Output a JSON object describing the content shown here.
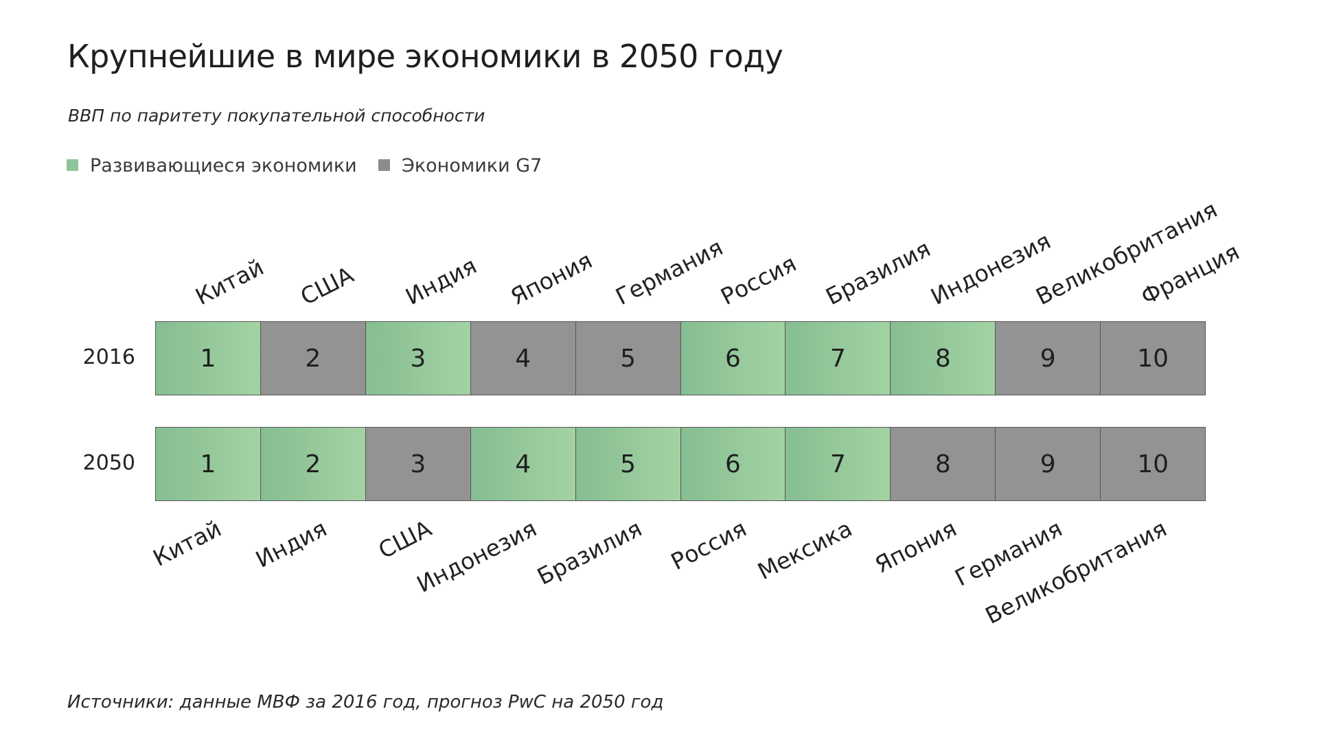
{
  "title": "Крупнейшие в мире экономики в 2050 году",
  "subtitle": "ВВП по паритету покупательной способности",
  "legend": [
    {
      "label": "Развивающиеся экономики",
      "color": "#8fc59a",
      "group": "developing"
    },
    {
      "label": "Экономики G7",
      "color": "#8c8c8c",
      "group": "g7"
    }
  ],
  "colors": {
    "developing_left": "#86bd92",
    "developing_right": "#a3d3a3",
    "g7": "#939393"
  },
  "source": "Источники: данные МВФ за 2016 год, прогноз PwC на 2050 год",
  "chart_data": {
    "type": "table",
    "ranks": [
      "1",
      "2",
      "3",
      "4",
      "5",
      "6",
      "7",
      "8",
      "9",
      "10"
    ],
    "rows": [
      {
        "year": "2016",
        "countries": [
          "Китай",
          "США",
          "Индия",
          "Япония",
          "Германия",
          "Россия",
          "Бразилия",
          "Индонезия",
          "Великобритания",
          "Франция"
        ],
        "groups": [
          "developing",
          "g7",
          "developing",
          "g7",
          "g7",
          "developing",
          "developing",
          "developing",
          "g7",
          "g7"
        ]
      },
      {
        "year": "2050",
        "countries": [
          "Китай",
          "Индия",
          "США",
          "Индонезия",
          "Бразилия",
          "Россия",
          "Мексика",
          "Япония",
          "Германия",
          "Великобритания"
        ],
        "groups": [
          "developing",
          "developing",
          "g7",
          "developing",
          "developing",
          "developing",
          "developing",
          "g7",
          "g7",
          "g7"
        ]
      }
    ]
  }
}
